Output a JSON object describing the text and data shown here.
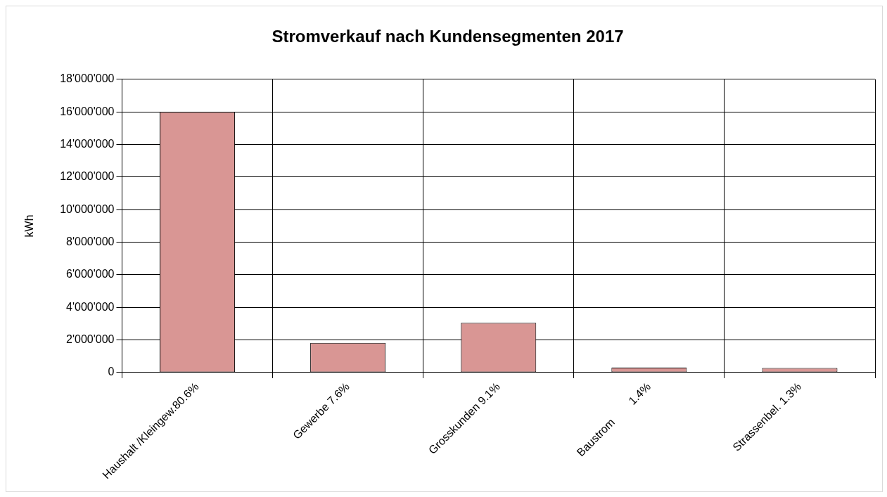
{
  "chart_data": {
    "type": "bar",
    "title": "Stromverkauf nach Kundensegmenten 2017",
    "ylabel": "kWh",
    "categories": [
      "Haushalt /Kleingew.80.6%",
      "Gewerbe 7.6%",
      "Grosskunden 9.1%",
      "Baustrom        1.4%",
      "Strassenbel. 1.3%"
    ],
    "values": [
      16000000,
      1820000,
      3050000,
      300000,
      280000
    ],
    "color": "#d99694",
    "ylim": [
      0,
      18000000
    ],
    "yticks": [
      {
        "value": 0,
        "label": "0"
      },
      {
        "value": 2000000,
        "label": "2'000'000"
      },
      {
        "value": 4000000,
        "label": "4'000'000"
      },
      {
        "value": 6000000,
        "label": "6'000'000"
      },
      {
        "value": 8000000,
        "label": "8'000'000"
      },
      {
        "value": 10000000,
        "label": "10'000'000"
      },
      {
        "value": 12000000,
        "label": "12'000'000"
      },
      {
        "value": 14000000,
        "label": "14'000'000"
      },
      {
        "value": 16000000,
        "label": "16'000'000"
      },
      {
        "value": 18000000,
        "label": "18'000'000"
      }
    ],
    "grid": true,
    "legend": false
  }
}
